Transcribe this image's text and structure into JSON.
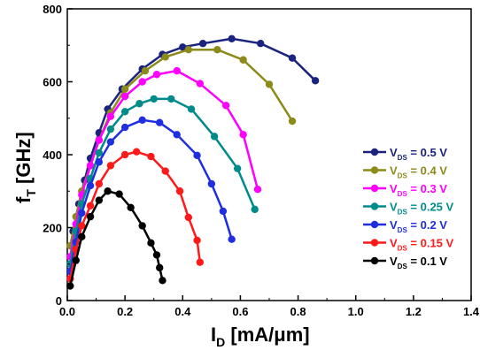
{
  "chart_data": {
    "type": "line",
    "xlabel": {
      "main": "I",
      "sub": "D",
      "unit": " [mA/μm]"
    },
    "ylabel": {
      "main": "f",
      "sub": "T",
      "unit": " [GHz]"
    },
    "xlim": [
      0,
      1.4
    ],
    "ylim": [
      0,
      800
    ],
    "xticks": [
      "0.0",
      "0.2",
      "0.4",
      "0.6",
      "0.8",
      "1.0",
      "1.2",
      "1.4"
    ],
    "yticks": [
      "0",
      "200",
      "400",
      "600",
      "800"
    ],
    "grid": false,
    "legend_position": "right",
    "series": [
      {
        "name": "V_DS = 0.5 V",
        "legend": {
          "pre": "V",
          "sub": "DS",
          "post": " = 0.5 V"
        },
        "color": "#1a237e",
        "points": [
          [
            0.01,
            80
          ],
          [
            0.02,
            190
          ],
          [
            0.04,
            265
          ],
          [
            0.06,
            330
          ],
          [
            0.08,
            390
          ],
          [
            0.11,
            460
          ],
          [
            0.14,
            525
          ],
          [
            0.19,
            580
          ],
          [
            0.26,
            635
          ],
          [
            0.33,
            675
          ],
          [
            0.4,
            695
          ],
          [
            0.47,
            705
          ],
          [
            0.57,
            718
          ],
          [
            0.67,
            705
          ],
          [
            0.78,
            665
          ],
          [
            0.86,
            603
          ]
        ]
      },
      {
        "name": "V_DS = 0.4 V",
        "legend": {
          "pre": "V",
          "sub": "DS",
          "post": " = 0.4 V"
        },
        "color": "#8c8a1a",
        "points": [
          [
            0.01,
            150
          ],
          [
            0.03,
            230
          ],
          [
            0.05,
            300
          ],
          [
            0.08,
            370
          ],
          [
            0.11,
            440
          ],
          [
            0.15,
            515
          ],
          [
            0.2,
            580
          ],
          [
            0.27,
            630
          ],
          [
            0.34,
            668
          ],
          [
            0.42,
            688
          ],
          [
            0.52,
            688
          ],
          [
            0.61,
            660
          ],
          [
            0.7,
            593
          ],
          [
            0.78,
            492
          ]
        ]
      },
      {
        "name": "V_DS = 0.3 V",
        "legend": {
          "pre": "V",
          "sub": "DS",
          "post": " = 0.3 V"
        },
        "color": "#ff00ff",
        "points": [
          [
            0.01,
            120
          ],
          [
            0.03,
            210
          ],
          [
            0.05,
            290
          ],
          [
            0.08,
            370
          ],
          [
            0.11,
            440
          ],
          [
            0.15,
            505
          ],
          [
            0.2,
            560
          ],
          [
            0.26,
            600
          ],
          [
            0.31,
            620
          ],
          [
            0.38,
            630
          ],
          [
            0.46,
            595
          ],
          [
            0.55,
            535
          ],
          [
            0.61,
            455
          ],
          [
            0.66,
            305
          ]
        ]
      },
      {
        "name": "V_DS = 0.25 V",
        "legend": {
          "pre": "V",
          "sub": "DS",
          "post": " = 0.25 V"
        },
        "color": "#008b8b",
        "points": [
          [
            0.01,
            100
          ],
          [
            0.03,
            190
          ],
          [
            0.05,
            265
          ],
          [
            0.08,
            335
          ],
          [
            0.11,
            405
          ],
          [
            0.15,
            470
          ],
          [
            0.2,
            518
          ],
          [
            0.25,
            540
          ],
          [
            0.3,
            553
          ],
          [
            0.36,
            553
          ],
          [
            0.43,
            525
          ],
          [
            0.51,
            450
          ],
          [
            0.59,
            362
          ],
          [
            0.65,
            250
          ]
        ]
      },
      {
        "name": "V_DS = 0.2 V",
        "legend": {
          "pre": "V",
          "sub": "DS",
          "post": " = 0.2 V"
        },
        "color": "#1f2fe0",
        "points": [
          [
            0.01,
            80
          ],
          [
            0.03,
            160
          ],
          [
            0.05,
            240
          ],
          [
            0.08,
            315
          ],
          [
            0.11,
            380
          ],
          [
            0.15,
            435
          ],
          [
            0.2,
            475
          ],
          [
            0.26,
            495
          ],
          [
            0.32,
            488
          ],
          [
            0.38,
            455
          ],
          [
            0.45,
            398
          ],
          [
            0.5,
            320
          ],
          [
            0.54,
            245
          ],
          [
            0.57,
            168
          ]
        ]
      },
      {
        "name": "V_DS = 0.15 V",
        "legend": {
          "pre": "V",
          "sub": "DS",
          "post": " = 0.15 V"
        },
        "color": "#ff1a1a",
        "points": [
          [
            0.01,
            60
          ],
          [
            0.03,
            140
          ],
          [
            0.05,
            205
          ],
          [
            0.08,
            260
          ],
          [
            0.11,
            320
          ],
          [
            0.15,
            370
          ],
          [
            0.2,
            400
          ],
          [
            0.24,
            408
          ],
          [
            0.29,
            395
          ],
          [
            0.34,
            355
          ],
          [
            0.39,
            300
          ],
          [
            0.42,
            228
          ],
          [
            0.45,
            165
          ],
          [
            0.46,
            105
          ]
        ]
      },
      {
        "name": "V_DS = 0.1 V",
        "legend": {
          "pre": "V",
          "sub": "DS",
          "post": " = 0.1 V"
        },
        "color": "#000000",
        "points": [
          [
            0.01,
            40
          ],
          [
            0.03,
            110
          ],
          [
            0.05,
            175
          ],
          [
            0.08,
            230
          ],
          [
            0.11,
            275
          ],
          [
            0.14,
            300
          ],
          [
            0.18,
            292
          ],
          [
            0.22,
            255
          ],
          [
            0.26,
            205
          ],
          [
            0.29,
            158
          ],
          [
            0.31,
            125
          ],
          [
            0.32,
            90
          ],
          [
            0.33,
            55
          ]
        ]
      }
    ]
  }
}
